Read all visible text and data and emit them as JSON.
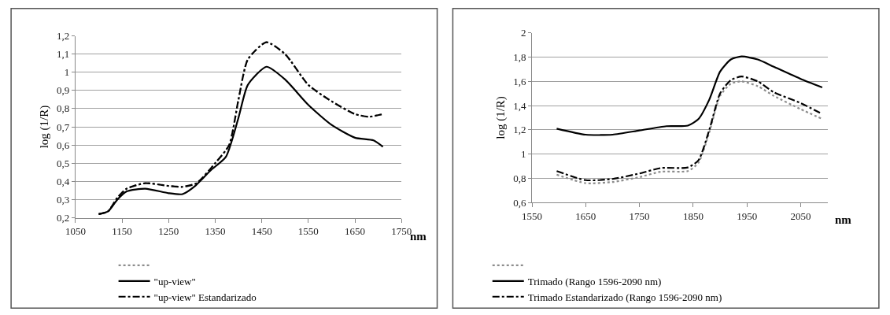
{
  "chart_data": [
    {
      "type": "line",
      "xlabel": "nm",
      "ylabel": "log (1/R)",
      "xlim": [
        1050,
        1750
      ],
      "xticks": [
        1050,
        1150,
        1250,
        1350,
        1450,
        1550,
        1650,
        1750
      ],
      "ylim": [
        0.2,
        1.2
      ],
      "yticks": [
        {
          "value": 0.2,
          "label": "0,2"
        },
        {
          "value": 0.3,
          "label": "0,3"
        },
        {
          "value": 0.4,
          "label": "0,4"
        },
        {
          "value": 0.5,
          "label": "0,5"
        },
        {
          "value": 0.6,
          "label": "0,6"
        },
        {
          "value": 0.7,
          "label": "0,7"
        },
        {
          "value": 0.8,
          "label": "0,8"
        },
        {
          "value": 0.9,
          "label": "0,9"
        },
        1,
        {
          "value": 1.1,
          "label": "1,1"
        },
        {
          "value": 1.2,
          "label": "1,2"
        }
      ],
      "grid": "y",
      "legend": "bottom",
      "marker": "none",
      "series": [
        {
          "color": "#8c8c8c",
          "line_style": "dotted",
          "x": [
            1100,
            1120,
            1140,
            1160,
            1200,
            1250,
            1280,
            1310,
            1350,
            1380,
            1400,
            1420,
            1460,
            1500,
            1550,
            1600,
            1650,
            1680,
            1710
          ],
          "values": [
            0.22,
            0.235,
            0.31,
            0.36,
            0.39,
            0.375,
            0.37,
            0.39,
            0.5,
            0.6,
            0.85,
            1.07,
            1.165,
            1.1,
            0.93,
            0.84,
            0.77,
            0.755,
            0.77
          ]
        },
        {
          "name": "\"up-view\"",
          "color": "#000000",
          "line_style": "solid",
          "x": [
            1100,
            1120,
            1140,
            1160,
            1200,
            1250,
            1280,
            1307,
            1340,
            1373,
            1400,
            1420,
            1460,
            1500,
            1550,
            1600,
            1650,
            1690,
            1710
          ],
          "values": [
            0.22,
            0.235,
            0.3,
            0.345,
            0.36,
            0.335,
            0.33,
            0.375,
            0.46,
            0.535,
            0.75,
            0.93,
            1.03,
            0.96,
            0.82,
            0.71,
            0.64,
            0.625,
            0.59
          ]
        },
        {
          "name": "\"up-view\" Estandarizado",
          "color": "#000000",
          "line_style": "dashdot",
          "x": [
            1100,
            1120,
            1140,
            1160,
            1200,
            1250,
            1280,
            1310,
            1350,
            1380,
            1400,
            1420,
            1460,
            1500,
            1550,
            1600,
            1650,
            1680,
            1710
          ],
          "values": [
            0.22,
            0.235,
            0.31,
            0.36,
            0.39,
            0.375,
            0.37,
            0.39,
            0.5,
            0.6,
            0.85,
            1.07,
            1.165,
            1.1,
            0.93,
            0.84,
            0.77,
            0.755,
            0.77
          ]
        }
      ]
    },
    {
      "type": "line",
      "xlabel": "nm",
      "ylabel": "log (1/R)",
      "xlim": [
        1550,
        2100
      ],
      "xticks": [
        1550,
        1650,
        1750,
        1850,
        1950,
        2050
      ],
      "ylim": [
        0.6,
        2
      ],
      "yticks": [
        {
          "value": 0.6,
          "label": "0,6"
        },
        {
          "value": 0.8,
          "label": "0,8"
        },
        1,
        {
          "value": 1.2,
          "label": "1,2"
        },
        {
          "value": 1.4,
          "label": "1,4"
        },
        {
          "value": 1.6,
          "label": "1,6"
        },
        {
          "value": 1.8,
          "label": "1,8"
        },
        2
      ],
      "grid": "y",
      "legend": "bottom",
      "marker": "none",
      "series": [
        {
          "color": "#8c8c8c",
          "line_style": "dotted",
          "x": [
            1596,
            1650,
            1700,
            1750,
            1790,
            1840,
            1860,
            1880,
            1900,
            1920,
            1940,
            1970,
            2000,
            2050,
            2090
          ],
          "values": [
            0.83,
            0.76,
            0.77,
            0.81,
            0.855,
            0.86,
            0.93,
            1.18,
            1.48,
            1.58,
            1.6,
            1.56,
            1.48,
            1.37,
            1.29
          ]
        },
        {
          "name": "Trimado (Rango 1596-2090 nm)",
          "color": "#000000",
          "line_style": "solid",
          "x": [
            1596,
            1650,
            1700,
            1750,
            1800,
            1840,
            1860,
            1880,
            1900,
            1920,
            1940,
            1970,
            2000,
            2050,
            2090
          ],
          "values": [
            1.21,
            1.16,
            1.16,
            1.195,
            1.23,
            1.235,
            1.29,
            1.45,
            1.68,
            1.78,
            1.805,
            1.78,
            1.72,
            1.62,
            1.55
          ]
        },
        {
          "name": "Trimado Estandarizado (Rango 1596-2090 nm)",
          "color": "#000000",
          "line_style": "dashdot",
          "x": [
            1596,
            1650,
            1700,
            1750,
            1790,
            1840,
            1860,
            1880,
            1900,
            1920,
            1940,
            1970,
            2000,
            2050,
            2090
          ],
          "values": [
            0.86,
            0.785,
            0.795,
            0.84,
            0.885,
            0.89,
            0.95,
            1.2,
            1.5,
            1.61,
            1.64,
            1.6,
            1.51,
            1.42,
            1.33
          ]
        }
      ]
    }
  ]
}
